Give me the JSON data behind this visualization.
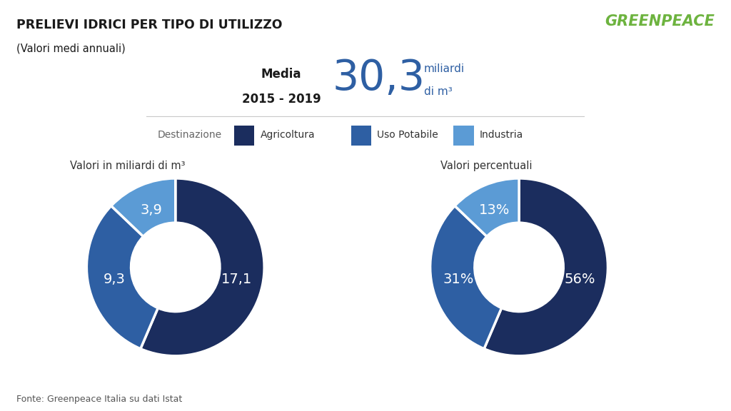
{
  "title": "PRELIEVI IDRICI PER TIPO DI UTILIZZO",
  "subtitle": "(Valori medi annuali)",
  "media_label_line1": "Media",
  "media_label_line2": "2015 - 2019",
  "media_value": "30,3",
  "media_unit_line1": "miliardi",
  "media_unit_line2": "di m³",
  "legend_label": "Destinazione",
  "categories": [
    "Agricoltura",
    "Uso Potabile",
    "Industria"
  ],
  "colors": [
    "#1b2d5e",
    "#2e5fa3",
    "#5b9bd5"
  ],
  "values_abs": [
    17.1,
    9.3,
    3.9
  ],
  "labels_abs": [
    "17,1",
    "9,3",
    "3,9"
  ],
  "labels_pct": [
    "56%",
    "31%",
    "13%"
  ],
  "chart1_title": "Valori in miliardi di m³",
  "chart2_title": "Valori percentuali",
  "source": "Fonte: Greenpeace Italia su dati Istat",
  "greenpeace_color": "#6db33f",
  "background_color": "#ffffff",
  "start_angle": 90
}
